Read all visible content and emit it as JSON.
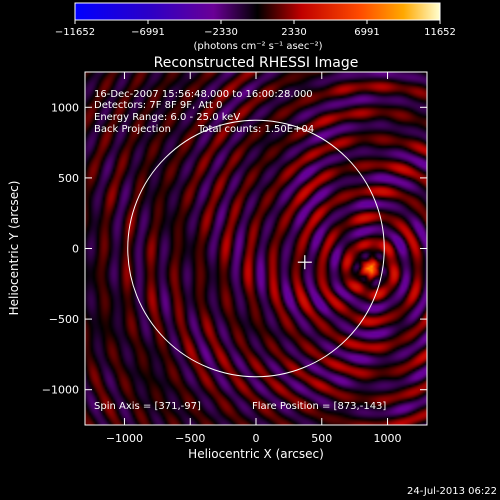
{
  "chart_data": {
    "type": "heatmap",
    "title": "Reconstructed RHESSI Image",
    "xlabel": "Heliocentric X (arcsec)",
    "ylabel": "Heliocentric Y (arcsec)",
    "xlim": [
      -1300,
      1300
    ],
    "ylim": [
      -1250,
      1250
    ],
    "x_ticks": [
      -1000,
      -500,
      0,
      500,
      1000
    ],
    "y_ticks": [
      -1000,
      -500,
      0,
      500,
      1000
    ],
    "x_tick_labels": [
      "−1000",
      "−500",
      "0",
      "500",
      "1000"
    ],
    "y_tick_labels": [
      "−1000",
      "−500",
      "0",
      "500",
      "1000"
    ],
    "colorbar": {
      "range": [
        -11652,
        11652
      ],
      "tick_values": [
        -11652,
        -6991,
        -2330,
        2330,
        6991,
        11652
      ],
      "tick_labels": [
        "−11652",
        "−6991",
        "−2330",
        "2330",
        "6991",
        "11652"
      ],
      "unit_label": "(photons cm⁻² s⁻¹ asec⁻²)"
    },
    "annotations": {
      "time_range": "16-Dec-2007 15:56:48.000 to 16:00:28.000",
      "detectors": "Detectors: 7F 8F 9F, Att 0",
      "energy": "Energy Range: 6.0 - 25.0 keV",
      "method": "Back Projection",
      "counts": "Total counts: 1.50E+04",
      "spin_axis": "Spin Axis = [371,-97]",
      "flare_position": "Flare Position = [873,-143]"
    },
    "source": {
      "x": 873,
      "y": -143
    },
    "solar_disk": {
      "center": [
        0,
        0
      ],
      "radius": 975
    },
    "spin_axis_point": {
      "x": 371,
      "y": -97
    }
  },
  "footer": {
    "date": "24-Jul-2013 06:22"
  }
}
